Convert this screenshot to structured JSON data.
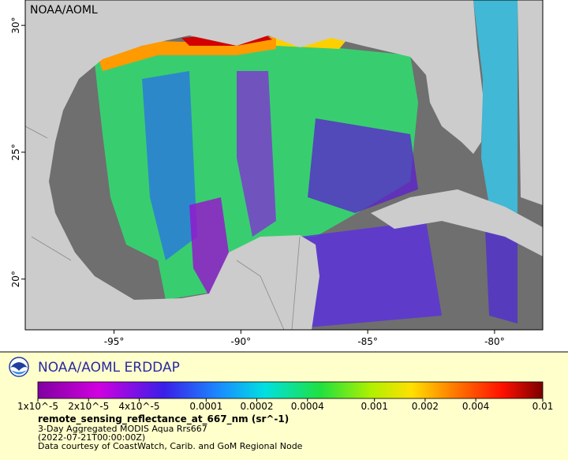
{
  "map": {
    "label": "NOAA/AOML",
    "xlim": [
      -98.5,
      -78.1
    ],
    "ylim": [
      18,
      31
    ],
    "xticks": [
      {
        "value": -95,
        "label": "-95°"
      },
      {
        "value": -90,
        "label": "-90°"
      },
      {
        "value": -85,
        "label": "-85°"
      },
      {
        "value": -80,
        "label": "-80°"
      }
    ],
    "yticks": [
      {
        "value": 20,
        "label": "20°"
      },
      {
        "value": 25,
        "label": "25°"
      },
      {
        "value": 30,
        "label": "30°"
      }
    ]
  },
  "legend": {
    "title": "NOAA/AOML ERDDAP",
    "colorbar": {
      "range": [
        1e-05,
        0.01
      ],
      "log": true,
      "ticks": [
        {
          "value": 1e-05,
          "label": "1x10^-5"
        },
        {
          "value": 2e-05,
          "label": "2x10^-5"
        },
        {
          "value": 4e-05,
          "label": "4x10^-5"
        },
        0.0001,
        0.0002,
        0.0004,
        0.001,
        0.002,
        0.004,
        0.01
      ]
    },
    "variable": "remote_sensing_reflectance_at_667_nm (sr^-1)",
    "lines": [
      "3-Day Aggregated MODIS Aqua Rrs667",
      "(2022-07-21T00:00:00Z)",
      "Data courtesy of CoastWatch, Carib. and GoM Regional Node"
    ]
  }
}
